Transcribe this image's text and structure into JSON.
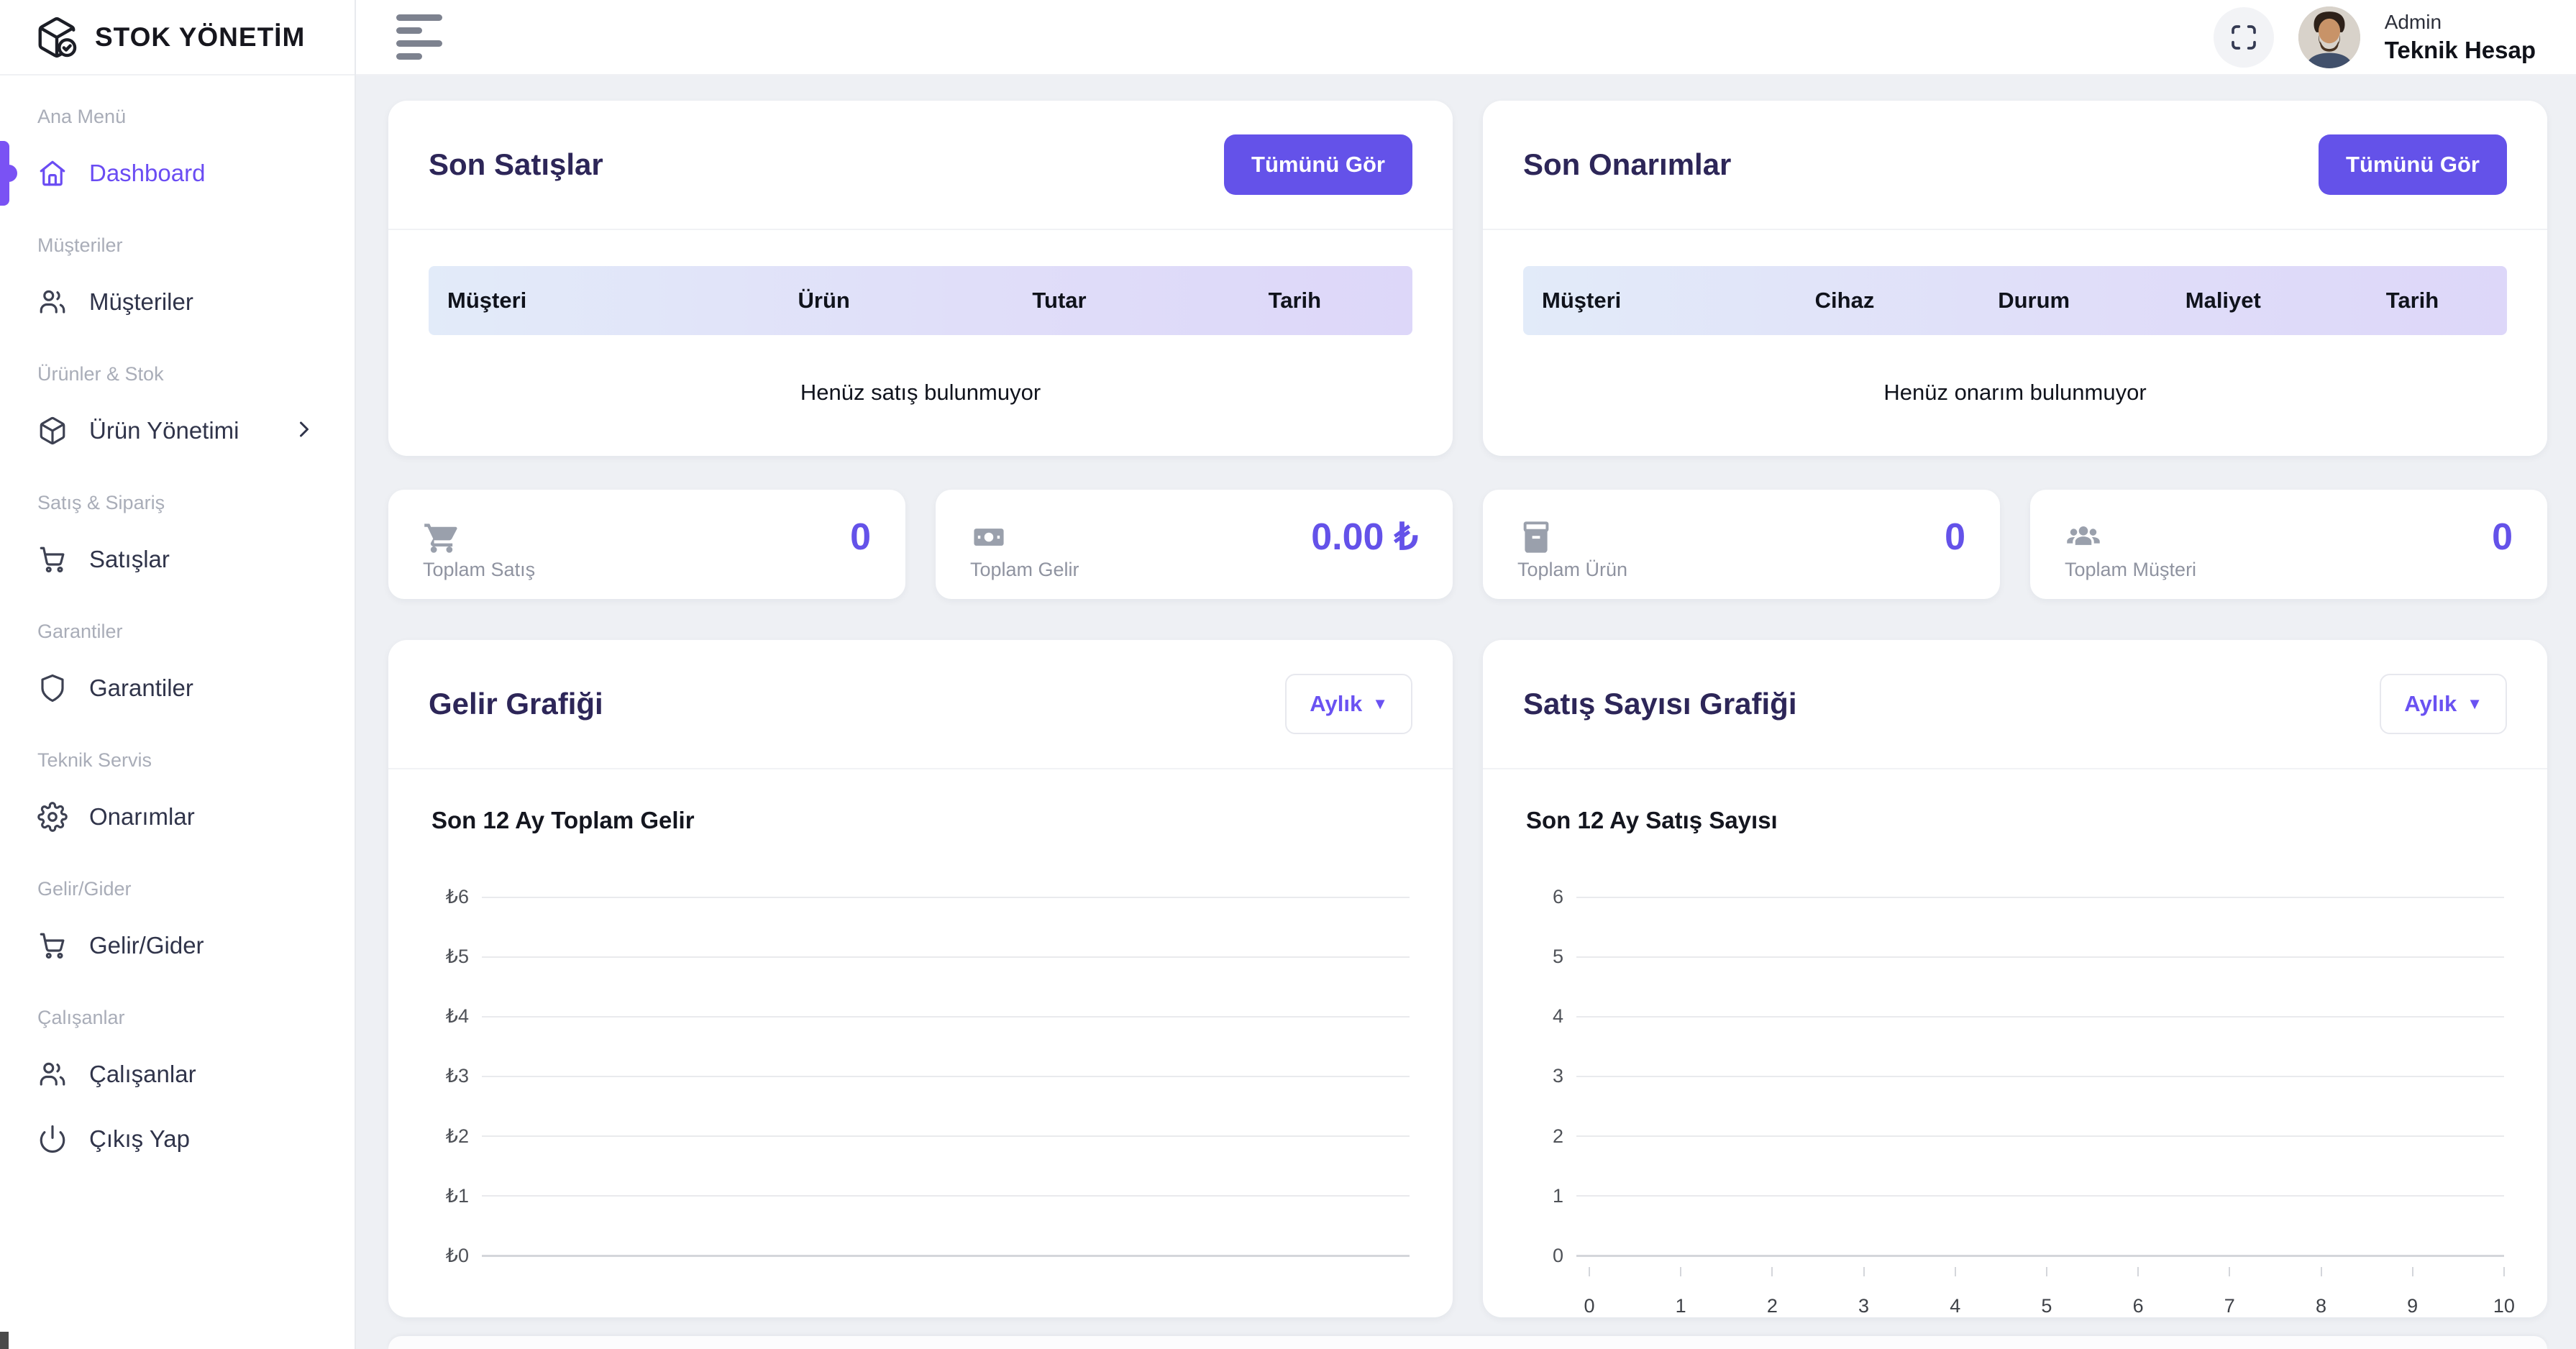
{
  "app": {
    "brand": "STOK YÖNETİM"
  },
  "header": {
    "user_role": "Admin",
    "user_name": "Teknik Hesap"
  },
  "sidebar": {
    "sections": [
      {
        "label": "Ana Menü",
        "item": {
          "label": "Dashboard",
          "icon": "home-icon",
          "active": true
        }
      },
      {
        "label": "Müşteriler",
        "item": {
          "label": "Müşteriler",
          "icon": "users-icon"
        }
      },
      {
        "label": "Ürünler & Stok",
        "item": {
          "label": "Ürün Yönetimi",
          "icon": "package-icon",
          "chevron": true
        }
      },
      {
        "label": "Satış & Sipariş",
        "item": {
          "label": "Satışlar",
          "icon": "cart-icon"
        }
      },
      {
        "label": "Garantiler",
        "item": {
          "label": "Garantiler",
          "icon": "shield-icon"
        }
      },
      {
        "label": "Teknik Servis",
        "item": {
          "label": "Onarımlar",
          "icon": "gear-icon"
        }
      },
      {
        "label": "Gelir/Gider",
        "item": {
          "label": "Gelir/Gider",
          "icon": "cart-icon"
        }
      },
      {
        "label": "Çalışanlar",
        "item": {
          "label": "Çalışanlar",
          "icon": "users-icon"
        },
        "item2": {
          "label": "Çıkış Yap",
          "icon": "power-icon"
        }
      }
    ]
  },
  "cards": {
    "sales": {
      "title": "Son Satışlar",
      "action": "Tümünü Gör",
      "columns": [
        "Müşteri",
        "Ürün",
        "Tutar",
        "Tarih"
      ],
      "empty": "Henüz satış bulunmuyor"
    },
    "repairs": {
      "title": "Son Onarımlar",
      "action": "Tümünü Gör",
      "columns": [
        "Müşteri",
        "Cihaz",
        "Durum",
        "Maliyet",
        "Tarih"
      ],
      "empty": "Henüz onarım bulunmuyor"
    }
  },
  "stats": [
    {
      "label": "Toplam Satış",
      "value": "0",
      "icon": "cart-icon"
    },
    {
      "label": "Toplam Gelir",
      "value": "0.00 ₺",
      "icon": "banknote-icon"
    },
    {
      "label": "Toplam Ürün",
      "value": "0",
      "icon": "package-icon"
    },
    {
      "label": "Toplam Müşteri",
      "value": "0",
      "icon": "users-group-icon"
    }
  ],
  "charts": {
    "revenue": {
      "card_title": "Gelir Grafiği",
      "period_label": "Aylık"
    },
    "sales": {
      "card_title": "Satış Sayısı Grafiği",
      "period_label": "Aylık"
    }
  },
  "chart_data": [
    {
      "type": "line",
      "title": "Son 12 Ay Toplam Gelir",
      "ytick_labels": [
        "₺6",
        "₺5",
        "₺4",
        "₺3",
        "₺2",
        "₺1",
        "₺0"
      ],
      "ylim": [
        0,
        6
      ],
      "xlim": null,
      "grid": true,
      "legend": false,
      "series": [],
      "note": "empty chart - no data plotted"
    },
    {
      "type": "line",
      "title": "Son 12 Ay Satış Sayısı",
      "ytick_labels": [
        "6",
        "5",
        "4",
        "3",
        "2",
        "1",
        "0"
      ],
      "xtick_labels": [
        "0",
        "1",
        "2",
        "3",
        "4",
        "5",
        "6",
        "7",
        "8",
        "9",
        "10"
      ],
      "ylim": [
        0,
        6
      ],
      "xlim": [
        0,
        10
      ],
      "grid": true,
      "legend": false,
      "series": [],
      "note": "empty chart - no data plotted"
    }
  ],
  "colors": {
    "accent": "#6452e9",
    "sidebar_active": "#7a52f4",
    "table_header_gradient": [
      "#e2ebf9",
      "#ddd7f9"
    ],
    "title": "#2d2658"
  }
}
